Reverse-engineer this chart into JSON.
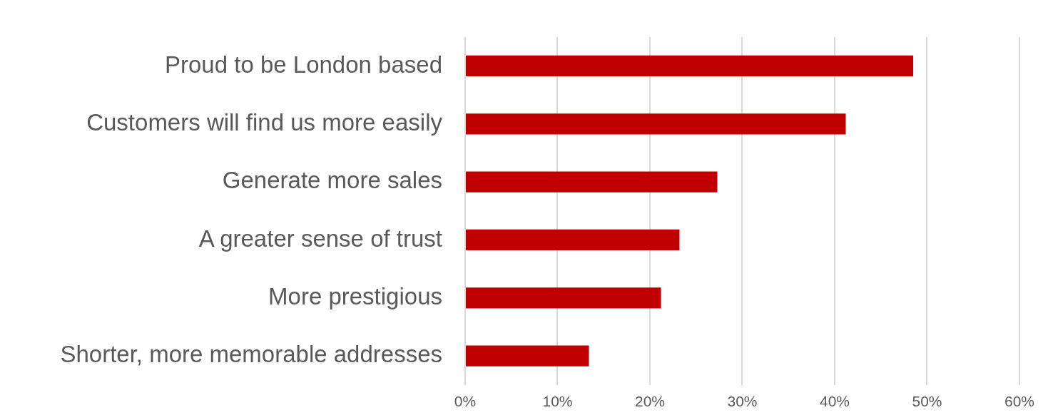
{
  "chart_data": {
    "type": "bar",
    "orientation": "horizontal",
    "categories": [
      "Proud to be London based",
      "Customers will find us more easily",
      "Generate more sales",
      "A greater sense of trust",
      "More prestigious",
      "Shorter, more memorable addresses"
    ],
    "values": [
      48.5,
      41.2,
      27.3,
      23.2,
      21.2,
      13.4
    ],
    "color": "#c00000",
    "xlim": [
      0,
      60
    ],
    "xticks": [
      {
        "value": 0,
        "label": "0%"
      },
      {
        "value": 10,
        "label": "10%"
      },
      {
        "value": 20,
        "label": "20%"
      },
      {
        "value": 30,
        "label": "30%"
      },
      {
        "value": 40,
        "label": "40%"
      },
      {
        "value": 50,
        "label": "50%"
      },
      {
        "value": 60,
        "label": "60%"
      }
    ],
    "grid": "x",
    "legend": false
  }
}
